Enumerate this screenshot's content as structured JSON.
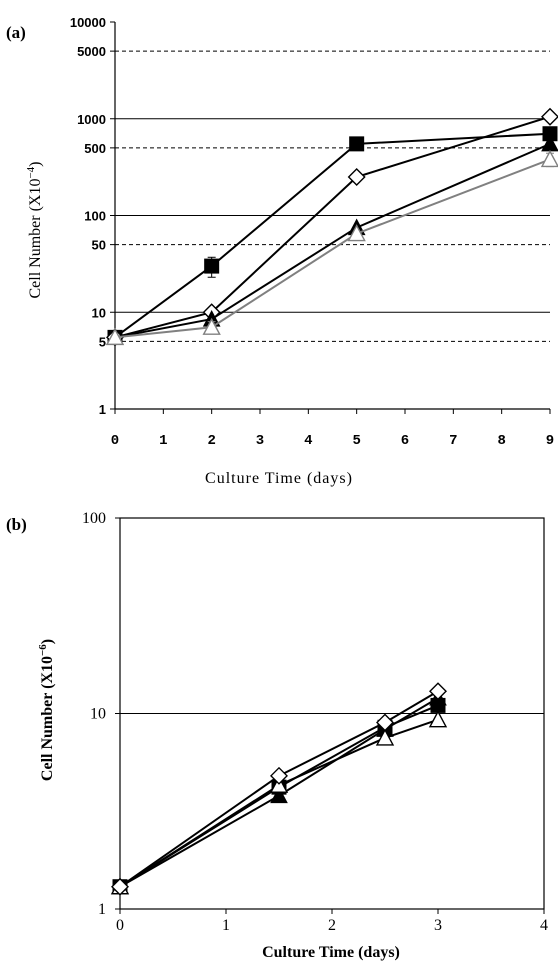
{
  "chart_data": [
    {
      "panel_label": "(a)",
      "type": "line",
      "xlabel": "Culture Time (days)",
      "ylabel": "Cell Number (X10",
      "ylabel_exp": "−4",
      "ylabel_close": ")",
      "yscale": "log",
      "xlim": [
        0,
        9
      ],
      "ylim": [
        1,
        10000
      ],
      "x_ticks": [
        "0",
        "1",
        "2",
        "3",
        "4",
        "5",
        "6",
        "7",
        "8",
        "9"
      ],
      "y_ticks": [
        {
          "value": 1,
          "label": "1"
        },
        {
          "value": 5,
          "label": "5"
        },
        {
          "value": 10,
          "label": "10"
        },
        {
          "value": 50,
          "label": "50"
        },
        {
          "value": 100,
          "label": "100"
        },
        {
          "value": 500,
          "label": "500"
        },
        {
          "value": 1000,
          "label": "1000"
        },
        {
          "value": 5000,
          "label": "5000"
        },
        {
          "value": 10000,
          "label": "10000"
        }
      ],
      "solid_gridlines": [
        10,
        100,
        1000
      ],
      "dashed_gridlines": [
        5,
        50,
        500,
        5000
      ],
      "series": [
        {
          "marker": "filled-square",
          "color": "#000000",
          "x": [
            0,
            2,
            5,
            9
          ],
          "y": [
            5.5,
            30,
            550,
            700
          ],
          "errors": [
            0,
            7,
            0,
            0
          ]
        },
        {
          "marker": "open-diamond",
          "color": "#000000",
          "x": [
            0,
            2,
            5,
            9
          ],
          "y": [
            5.5,
            10,
            250,
            1050
          ],
          "errors": [
            0,
            0,
            0,
            0
          ]
        },
        {
          "marker": "filled-triangle",
          "color": "#000000",
          "x": [
            0,
            2,
            5,
            9
          ],
          "y": [
            5.5,
            8.5,
            75,
            550
          ],
          "errors": [
            0,
            0,
            0,
            0
          ]
        },
        {
          "marker": "open-triangle",
          "color": "#808080",
          "x": [
            0,
            2,
            5,
            9
          ],
          "y": [
            5.5,
            7,
            65,
            380
          ],
          "errors": [
            0,
            1,
            0,
            60
          ]
        }
      ]
    },
    {
      "panel_label": "(b)",
      "type": "line",
      "xlabel": "Culture Time (days)",
      "ylabel": "Cell Number (X10",
      "ylabel_exp": "−6",
      "ylabel_close": ")",
      "yscale": "log",
      "xlim": [
        0,
        4
      ],
      "ylim": [
        1,
        100
      ],
      "x_ticks": [
        "0",
        "1",
        "2",
        "3",
        "4"
      ],
      "y_ticks": [
        {
          "value": 1,
          "label": "1"
        },
        {
          "value": 10,
          "label": "10"
        },
        {
          "value": 100,
          "label": "100"
        }
      ],
      "solid_gridlines": [
        10
      ],
      "dashed_gridlines": [],
      "series": [
        {
          "marker": "filled-square",
          "color": "#000000",
          "x": [
            0,
            1.5,
            2.5,
            3
          ],
          "y": [
            1.3,
            4.2,
            8.5,
            11
          ],
          "errors": [
            0,
            0,
            0,
            0
          ]
        },
        {
          "marker": "filled-triangle",
          "color": "#000000",
          "x": [
            0,
            1.5,
            2.5,
            3
          ],
          "y": [
            1.3,
            3.8,
            8.3,
            12
          ],
          "errors": [
            0,
            0,
            0,
            0
          ]
        },
        {
          "marker": "open-triangle",
          "color": "#000000",
          "x": [
            0,
            1.5,
            2.5,
            3
          ],
          "y": [
            1.3,
            4.3,
            7.5,
            9.3
          ],
          "errors": [
            0,
            0,
            0,
            0
          ]
        },
        {
          "marker": "open-diamond",
          "color": "#000000",
          "x": [
            0,
            1.5,
            2.5,
            3
          ],
          "y": [
            1.3,
            4.8,
            9,
            13
          ],
          "errors": [
            0,
            0,
            0,
            0
          ]
        }
      ]
    }
  ]
}
